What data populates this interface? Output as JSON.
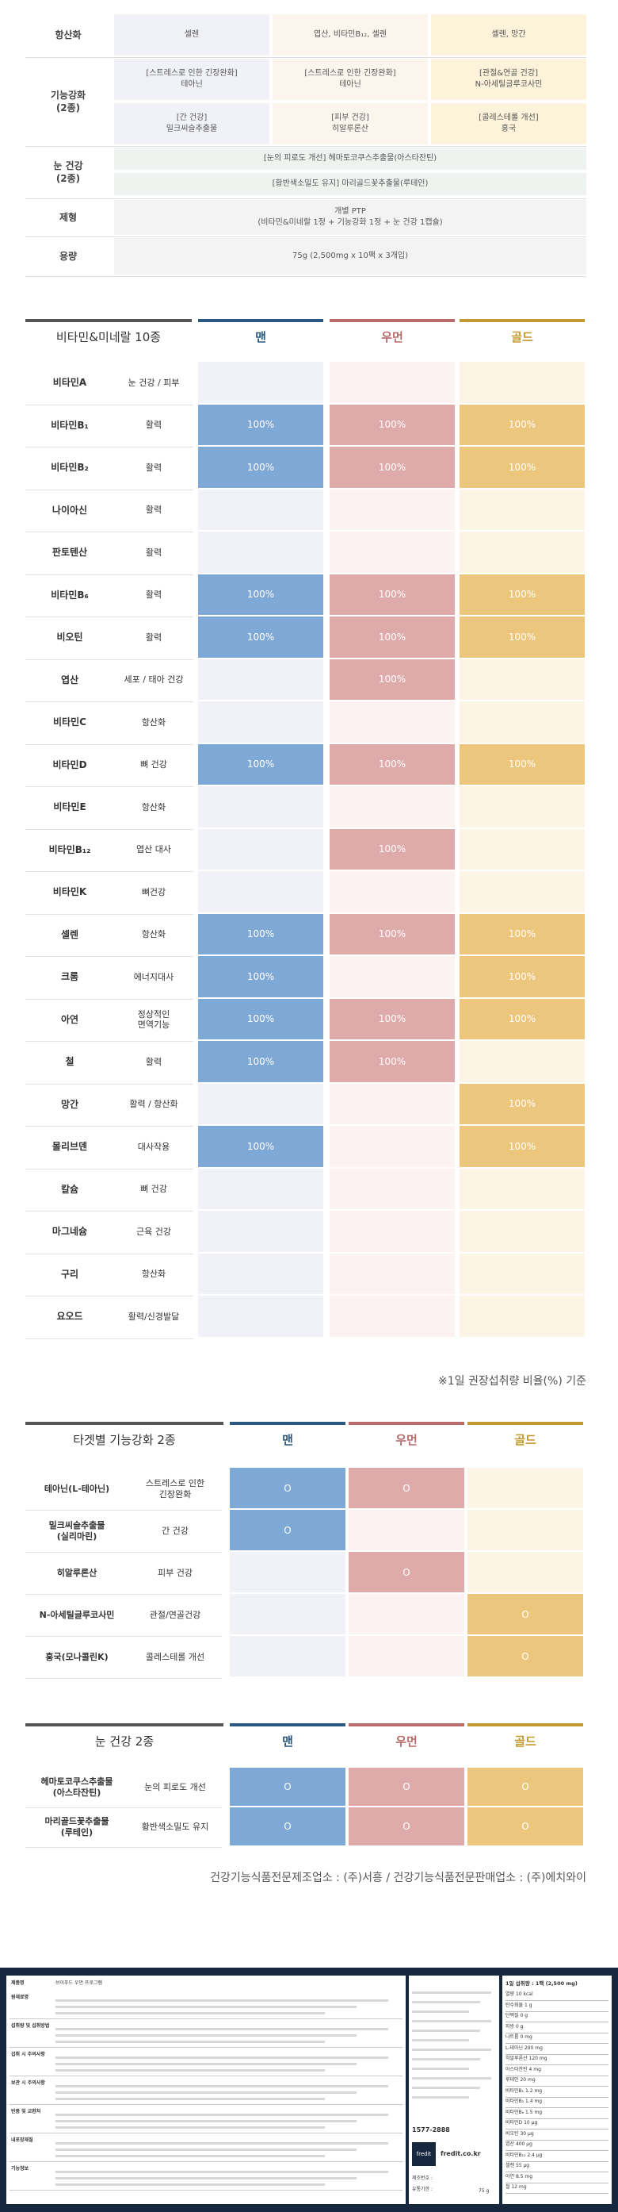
{
  "top_table": {
    "rows": [
      {
        "label": "항산화",
        "men": "셀렌",
        "women": "엽산, 비타민B₁₂, 셀렌",
        "gold": "셀렌, 망간"
      },
      {
        "label": "기능강화\n(2종)",
        "men": "[스트레스로 인한 긴장완화]\n테아닌",
        "women": "[스트레스로 인한 긴장완화]\n테아닌",
        "gold": "[관절&연골 건강]\nN-아세틸글루코사민"
      },
      {
        "label": "",
        "men": "[간 건강]\n밀크씨슬추출물",
        "women": "[피부 건강]\n히알루론산",
        "gold": "[콜레스테롤 개선]\n홍국"
      },
      {
        "label": "눈 건강\n(2종)",
        "shared1": "[눈의 피로도 개선] 헤마토코쿠스추출물(아스타잔틴)",
        "shared2": "[황반색소밀도 유지] 마리골드꽃추출물(루테인)"
      },
      {
        "label": "제형",
        "shared": "개별 PTP\n(비타민&미네랄 1정 + 기능강화 1정 + 눈 건강 1캡슐)"
      },
      {
        "label": "용량",
        "shared": "75g (2,500mg x 10팩 x 3개입)"
      }
    ]
  },
  "vitamin_table": {
    "title": "비타민&미네랄 10종",
    "headers": {
      "men": "맨",
      "women": "우먼",
      "gold": "골드"
    },
    "cell_value": "100%",
    "rows": [
      {
        "name": "비타민A",
        "fn": "눈 건강 / 피부",
        "men": false,
        "women": false,
        "gold": false
      },
      {
        "name": "비타민B₁",
        "fn": "활력",
        "men": true,
        "women": true,
        "gold": true
      },
      {
        "name": "비타민B₂",
        "fn": "활력",
        "men": true,
        "women": true,
        "gold": true
      },
      {
        "name": "나이아신",
        "fn": "활력",
        "men": false,
        "women": false,
        "gold": false
      },
      {
        "name": "판토텐산",
        "fn": "활력",
        "men": false,
        "women": false,
        "gold": false
      },
      {
        "name": "비타민B₆",
        "fn": "활력",
        "men": true,
        "women": true,
        "gold": true
      },
      {
        "name": "비오틴",
        "fn": "활력",
        "men": true,
        "women": true,
        "gold": true
      },
      {
        "name": "엽산",
        "fn": "세포 / 태아 건강",
        "men": false,
        "women": true,
        "gold": false
      },
      {
        "name": "비타민C",
        "fn": "항산화",
        "men": false,
        "women": false,
        "gold": false
      },
      {
        "name": "비타민D",
        "fn": "뼈 건강",
        "men": true,
        "women": true,
        "gold": true
      },
      {
        "name": "비타민E",
        "fn": "항산화",
        "men": false,
        "women": false,
        "gold": false
      },
      {
        "name": "비타민B₁₂",
        "fn": "엽산 대사",
        "men": false,
        "women": true,
        "gold": false
      },
      {
        "name": "비타민K",
        "fn": "뼈건강",
        "men": false,
        "women": false,
        "gold": false
      },
      {
        "name": "셀렌",
        "fn": "항산화",
        "men": true,
        "women": true,
        "gold": true
      },
      {
        "name": "크롬",
        "fn": "에너지대사",
        "men": true,
        "women": false,
        "gold": true
      },
      {
        "name": "아연",
        "fn": "정상적인\n면역기능",
        "men": true,
        "women": true,
        "gold": true
      },
      {
        "name": "철",
        "fn": "활력",
        "men": true,
        "women": true,
        "gold": false
      },
      {
        "name": "망간",
        "fn": "활력 / 항산화",
        "men": false,
        "women": false,
        "gold": true
      },
      {
        "name": "몰리브덴",
        "fn": "대사작용",
        "men": true,
        "women": false,
        "gold": true
      },
      {
        "name": "칼슘",
        "fn": "뼈 건강",
        "men": false,
        "women": false,
        "gold": false
      },
      {
        "name": "마그네슘",
        "fn": "근육 건강",
        "men": false,
        "women": false,
        "gold": false
      },
      {
        "name": "구리",
        "fn": "항산화",
        "men": false,
        "women": false,
        "gold": false
      },
      {
        "name": "요오드",
        "fn": "활력/신경발달",
        "men": false,
        "women": false,
        "gold": false
      }
    ],
    "note": "※1일 권장섭취량 비율(%) 기준"
  },
  "target_table": {
    "title": "타겟별 기능강화 2종",
    "headers": {
      "men": "맨",
      "women": "우먼",
      "gold": "골드"
    },
    "cell_value": "O",
    "rows": [
      {
        "name": "테아닌(L-테아닌)",
        "fn": "스트레스로 인한\n긴장완화",
        "men": true,
        "women": true,
        "gold": false
      },
      {
        "name": "밀크씨슬추출물\n(실리마린)",
        "fn": "간 건강",
        "men": true,
        "women": false,
        "gold": false
      },
      {
        "name": "히알루론산",
        "fn": "피부 건강",
        "men": false,
        "women": true,
        "gold": false
      },
      {
        "name": "N-아세틸글루코사민",
        "fn": "관절/연골건강",
        "men": false,
        "women": false,
        "gold": true
      },
      {
        "name": "홍국(모나콜린K)",
        "fn": "콜레스테롤 개선",
        "men": false,
        "women": false,
        "gold": true
      }
    ]
  },
  "eye_table": {
    "title": "눈 건강 2종",
    "headers": {
      "men": "맨",
      "women": "우먼",
      "gold": "골드"
    },
    "cell_value": "O",
    "rows": [
      {
        "name": "헤마토코쿠스추출물\n(아스타잔틴)",
        "fn": "눈의 피로도 개선",
        "men": true,
        "women": true,
        "gold": true
      },
      {
        "name": "마리골드꽃추출물\n(루테인)",
        "fn": "황반색소밀도 유지",
        "men": true,
        "women": true,
        "gold": true
      }
    ]
  },
  "manufacturer_note": "건강기능식품전문제조업소 : (주)서흥 / 건강기능식품전문판매업소 : (주)에치와이",
  "footer": {
    "product_name_label": "제품명",
    "product_name": "브이푸드 우먼 프로그램",
    "brand": "fredit",
    "site": "fredit.co.kr",
    "phone": "1577-2888",
    "nutrition_title": "1일 섭취량 : 1팩 (2,500 mg)",
    "nutrition_rows": [
      "열량 10 kcal",
      "탄수화물 1 g",
      "단백질 0 g",
      "지방 0 g",
      "나트륨 0 mg",
      "L-테아닌 200 mg",
      "히알루론산 120 mg",
      "아스타잔틴 4 mg",
      "루테인 20 mg",
      "비타민B₁ 1.2 mg",
      "비타민B₂ 1.4 mg",
      "비타민B₆ 1.5 mg",
      "비타민D 10 μg",
      "비오틴 30 μg",
      "엽산 400 μg",
      "비타민B₁₂ 2.4 μg",
      "셀렌 55 μg",
      "아연 8.5 mg",
      "철 12 mg"
    ],
    "field_labels": [
      "원재료명",
      "섭취량 및 섭취방법",
      "섭취 시 주의사항",
      "보관 시 주의사항",
      "반품 및 교환처",
      "내포장재질",
      "기능정보"
    ],
    "barcode_label": "제조번호 :",
    "expiry_label": "유통기한 :",
    "weight": "75 g"
  },
  "colors": {
    "men": "#7ea9d6",
    "women": "#dfaaaa",
    "gold": "#ecc67c",
    "men_light": "#f1f2f8",
    "women_light": "#fcf2f2",
    "gold_light": "#fcf4e4",
    "men_bar": "#2b5880",
    "women_bar": "#b86b6b",
    "gold_bar": "#c2992f"
  }
}
